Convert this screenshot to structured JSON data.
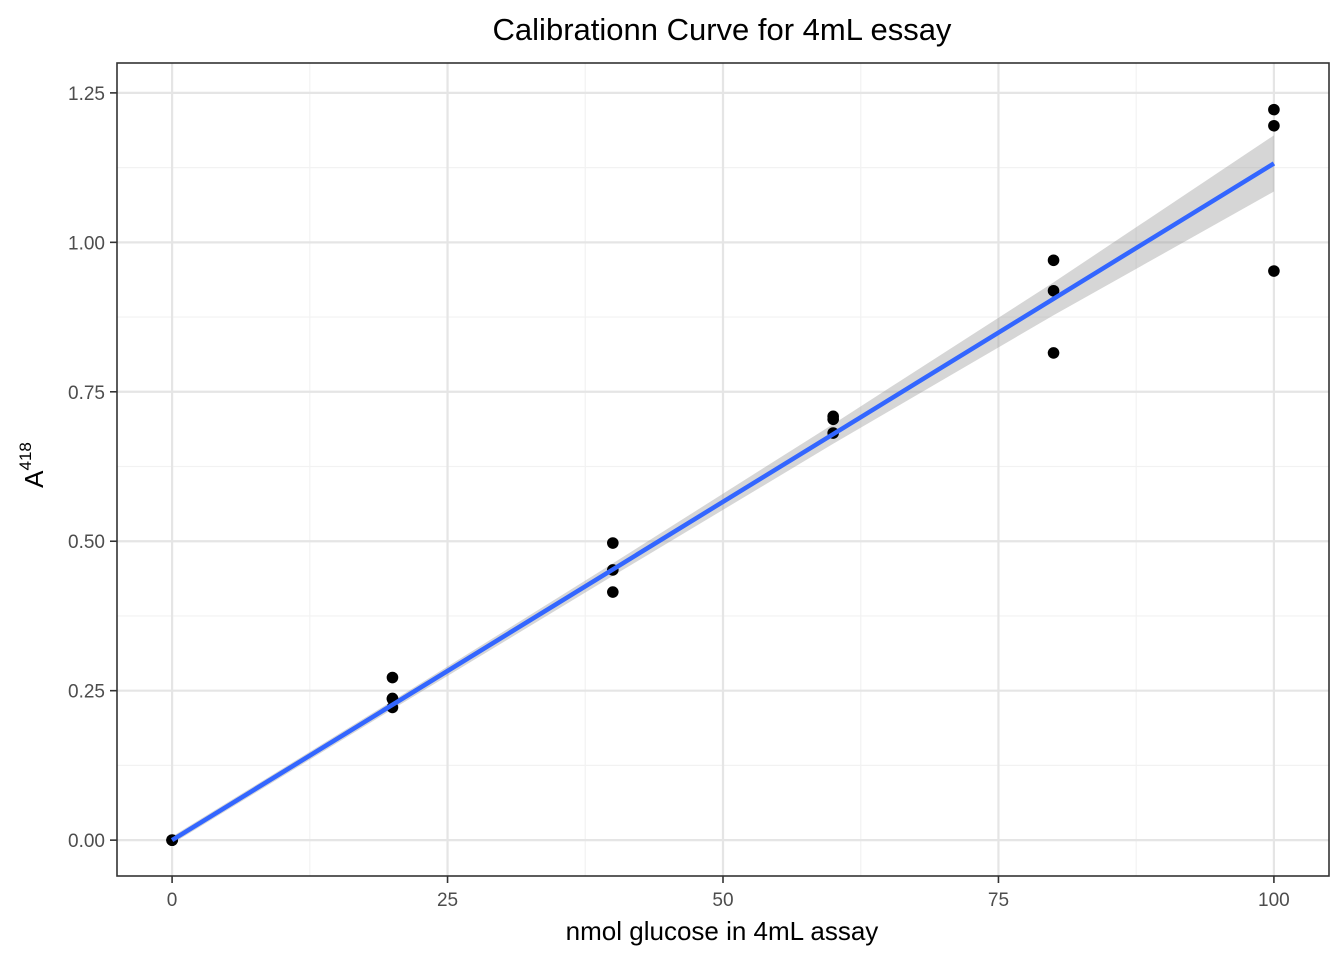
{
  "chart_data": {
    "type": "scatter",
    "title": "Calibrationn Curve for 4mL essay",
    "xlabel": "nmol glucose in 4mL assay",
    "ylabel": {
      "base": "A",
      "superscript": "418"
    },
    "xlim": [
      -5,
      105
    ],
    "ylim": [
      -0.06,
      1.3
    ],
    "x_ticks": [
      0,
      25,
      50,
      75,
      100
    ],
    "x_tick_labels": [
      "0",
      "25",
      "50",
      "75",
      "100"
    ],
    "y_ticks": [
      0,
      0.25,
      0.5,
      0.75,
      1.0,
      1.25
    ],
    "y_tick_labels": [
      "0.00",
      "0.25",
      "0.50",
      "0.75",
      "1.00",
      "1.25"
    ],
    "grid": true,
    "points": {
      "x": [
        0,
        0,
        0,
        20,
        20,
        20,
        20,
        40,
        40,
        40,
        60,
        60,
        60,
        80,
        80,
        80,
        100,
        100,
        100
      ],
      "y": [
        0,
        0,
        0,
        0.272,
        0.237,
        0.222,
        0.236,
        0.497,
        0.452,
        0.415,
        0.709,
        0.704,
        0.681,
        0.97,
        0.919,
        0.815,
        1.222,
        1.195,
        0.952
      ]
    },
    "fit": {
      "method": "linear regression",
      "slope": 0.01132,
      "intercept": 0.0,
      "x_range": [
        0,
        100
      ],
      "confidence_band": {
        "x": [
          0,
          20,
          40,
          60,
          80,
          100
        ],
        "lower": [
          -0.006,
          0.219,
          0.442,
          0.663,
          0.878,
          1.085
        ],
        "upper": [
          0.006,
          0.233,
          0.463,
          0.696,
          0.933,
          1.179
        ]
      }
    },
    "colors": {
      "points": "#000000",
      "fit_line": "#3366ff",
      "confidence_band": "#999999",
      "panel_background": "#ffffff",
      "grid_major": "#e5e5e5",
      "grid_minor": "#f2f2f2",
      "panel_border": "#333333"
    }
  }
}
